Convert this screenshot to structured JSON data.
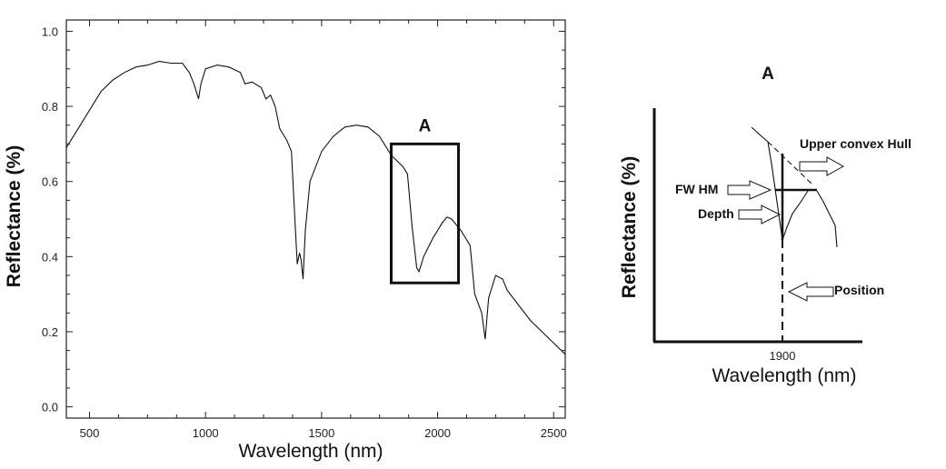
{
  "chart_data": [
    {
      "type": "line",
      "title": "",
      "xlabel": "Wavelength (nm)",
      "ylabel": "Reflectance (%)",
      "xlim": [
        400,
        2550
      ],
      "ylim": [
        -0.03,
        1.03
      ],
      "xticks": [
        500,
        1000,
        1500,
        2000,
        2500
      ],
      "xtick_labels": [
        "500",
        "1000",
        "1500",
        "2000",
        "2500"
      ],
      "yticks": [
        0.0,
        0.2,
        0.4,
        0.6,
        0.8,
        1.0
      ],
      "ytick_labels": [
        "0.0",
        "0.2",
        "0.4",
        "0.6",
        "0.8",
        "1.0"
      ],
      "grid": false,
      "annotation": {
        "label": "A",
        "box_x": [
          1800,
          2090
        ],
        "box_y": [
          0.33,
          0.7
        ]
      },
      "series": [
        {
          "name": "spectrum",
          "x": [
            400,
            450,
            500,
            550,
            600,
            650,
            700,
            750,
            800,
            850,
            900,
            930,
            950,
            970,
            980,
            1000,
            1050,
            1100,
            1150,
            1170,
            1200,
            1240,
            1260,
            1280,
            1300,
            1320,
            1350,
            1370,
            1385,
            1395,
            1405,
            1412,
            1420,
            1430,
            1450,
            1500,
            1550,
            1600,
            1650,
            1700,
            1750,
            1800,
            1850,
            1870,
            1890,
            1910,
            1920,
            1940,
            1980,
            2020,
            2040,
            2060,
            2100,
            2140,
            2160,
            2190,
            2205,
            2220,
            2250,
            2280,
            2300,
            2350,
            2400,
            2450,
            2500,
            2550
          ],
          "y": [
            0.69,
            0.74,
            0.79,
            0.84,
            0.87,
            0.89,
            0.905,
            0.91,
            0.92,
            0.915,
            0.915,
            0.89,
            0.86,
            0.82,
            0.86,
            0.9,
            0.91,
            0.905,
            0.89,
            0.86,
            0.865,
            0.85,
            0.82,
            0.83,
            0.8,
            0.74,
            0.71,
            0.68,
            0.5,
            0.38,
            0.41,
            0.39,
            0.34,
            0.47,
            0.6,
            0.68,
            0.72,
            0.745,
            0.75,
            0.745,
            0.72,
            0.67,
            0.64,
            0.62,
            0.48,
            0.37,
            0.36,
            0.4,
            0.45,
            0.49,
            0.505,
            0.5,
            0.47,
            0.43,
            0.3,
            0.25,
            0.18,
            0.29,
            0.35,
            0.34,
            0.31,
            0.27,
            0.23,
            0.2,
            0.17,
            0.14
          ]
        }
      ]
    },
    {
      "type": "line",
      "title": "A",
      "xlabel": "Wavelength (nm)",
      "ylabel": "Reflectance (%)",
      "xtick_labels": [
        "1900"
      ],
      "annotations": [
        "Upper convex Hull",
        "FW HM",
        "Depth",
        "Position"
      ]
    }
  ]
}
